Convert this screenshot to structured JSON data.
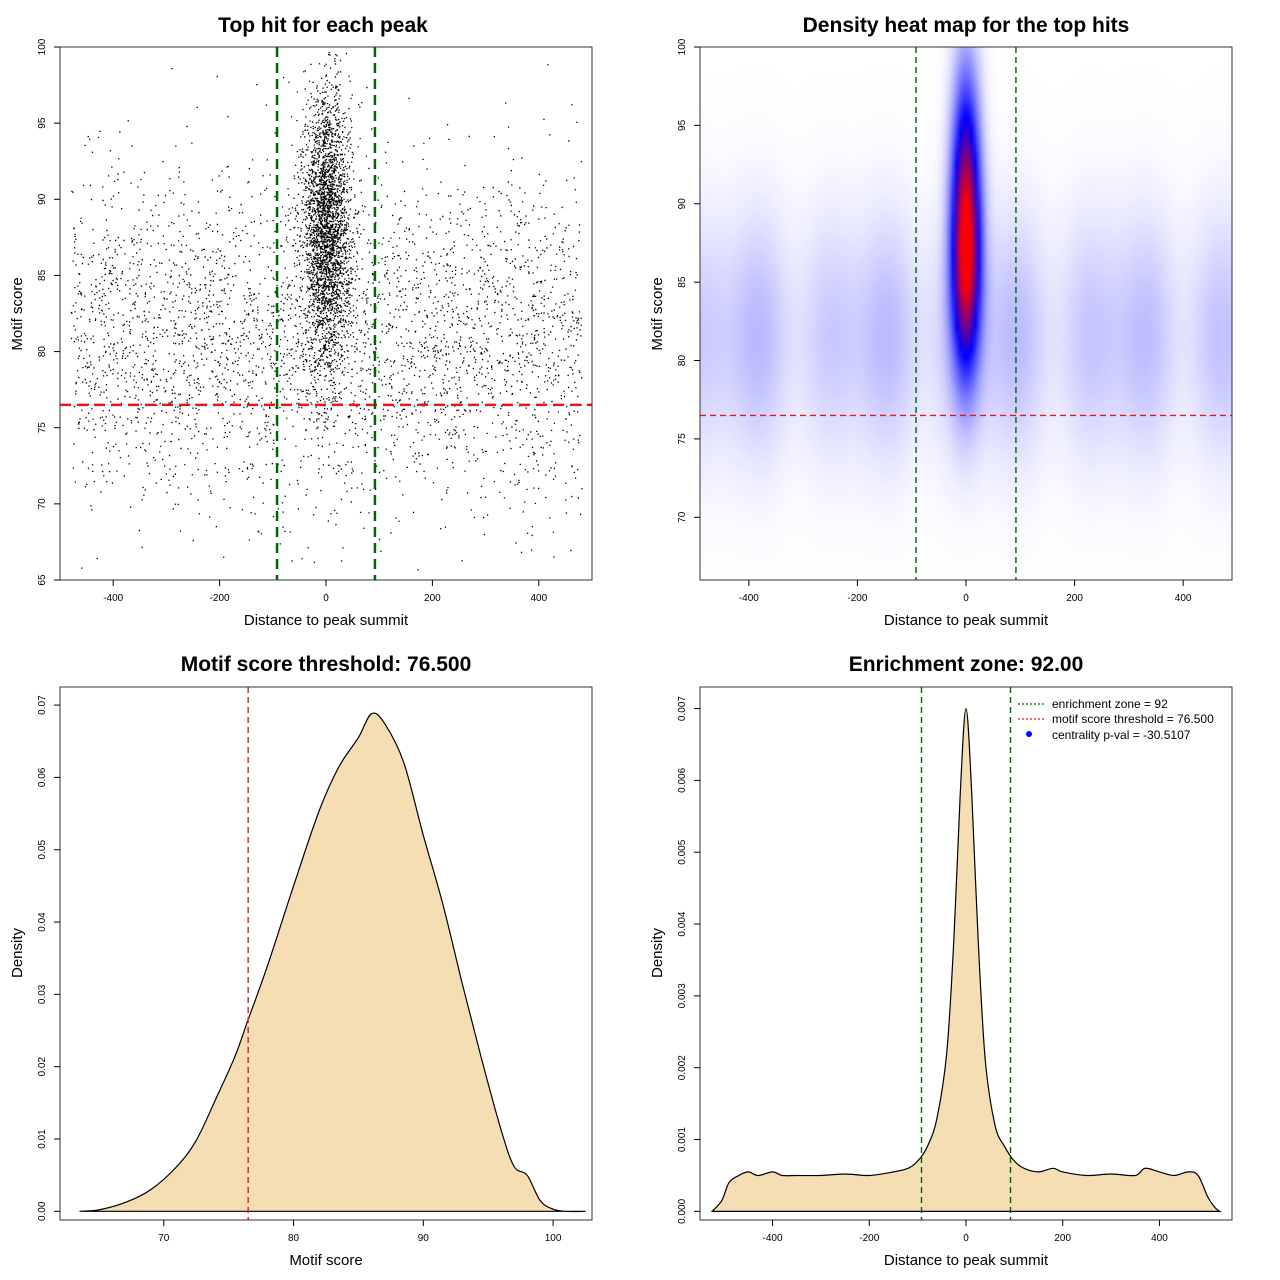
{
  "colors": {
    "threshold_line": "#e31a1c",
    "zone_line": "#006400",
    "density_fill": "#f5deb3",
    "points": "#000000",
    "heat_low": "#ffffff",
    "heat_mid": "#0000ff",
    "heat_high": "#ff0000",
    "legend_point": "#0000ff"
  },
  "chart_data": [
    {
      "type": "scatter",
      "title": "Top hit for each peak",
      "xlabel": "Distance to peak summit",
      "ylabel": "Motif score",
      "xlim": [
        -500,
        500
      ],
      "ylim": [
        65,
        100
      ],
      "xticks": [
        -400,
        -200,
        0,
        200,
        400
      ],
      "yticks": [
        65,
        70,
        75,
        80,
        85,
        90,
        95,
        100
      ],
      "background": {
        "n": 3400,
        "x_range": [
          -480,
          480
        ],
        "y_mean": 81,
        "y_sd": 5.5
      },
      "central_cluster": {
        "n": 3000,
        "x_mean": 0,
        "x_sd": 22,
        "y_mean": 88,
        "y_sd": 4.5
      },
      "horizontal_line": 76.5,
      "vertical_lines": [
        -92,
        92
      ],
      "grid": false
    },
    {
      "type": "heatmap",
      "title": "Density heat map for the top hits",
      "xlabel": "Distance to peak summit",
      "ylabel": "Motif score",
      "xlim": [
        -490,
        490
      ],
      "ylim": [
        66,
        100
      ],
      "xticks": [
        -400,
        -200,
        0,
        200,
        400
      ],
      "yticks": [
        70,
        75,
        80,
        85,
        90,
        95,
        100
      ],
      "peak": {
        "x": 0,
        "y": 87.5,
        "x_sd": 18,
        "y_sd": 5.5
      },
      "background_band_y": 81.5,
      "horizontal_line": 76.5,
      "vertical_lines": [
        -92,
        92
      ],
      "grid": false
    },
    {
      "type": "area",
      "title": "Motif score threshold: 76.500",
      "xlabel": "Motif score",
      "ylabel": "Density",
      "xlim": [
        62,
        103
      ],
      "ylim": [
        -0.0012,
        0.0725
      ],
      "xticks": [
        70,
        80,
        90,
        100
      ],
      "yticks": [
        0.0,
        0.01,
        0.02,
        0.03,
        0.04,
        0.05,
        0.06,
        0.07
      ],
      "ytick_labels": [
        "0.00",
        "0.01",
        "0.02",
        "0.03",
        "0.04",
        "0.05",
        "0.06",
        "0.07"
      ],
      "x": [
        63.5,
        65,
        67,
        69,
        71,
        72.5,
        74,
        75.5,
        76.5,
        78,
        80,
        82,
        83.5,
        85,
        86,
        87,
        88.5,
        90,
        91.5,
        93,
        94.5,
        96,
        97,
        98,
        99,
        100,
        101,
        102.5
      ],
      "y": [
        0.0,
        0.0002,
        0.0012,
        0.003,
        0.0062,
        0.0098,
        0.0155,
        0.0215,
        0.0265,
        0.034,
        0.045,
        0.0555,
        0.0615,
        0.0655,
        0.0688,
        0.0675,
        0.062,
        0.052,
        0.0425,
        0.0315,
        0.021,
        0.0112,
        0.0062,
        0.005,
        0.0015,
        0.0003,
        0.0,
        0.0
      ],
      "vertical_lines": [
        76.5
      ],
      "grid": false
    },
    {
      "type": "area",
      "title": "Enrichment zone: 92.00",
      "xlabel": "Distance to peak summit",
      "ylabel": "Density",
      "xlim": [
        -550,
        550
      ],
      "ylim": [
        -0.00012,
        0.0073
      ],
      "xticks": [
        -400,
        -200,
        0,
        200,
        400
      ],
      "yticks": [
        0.0,
        0.001,
        0.002,
        0.003,
        0.004,
        0.005,
        0.006,
        0.007
      ],
      "ytick_labels": [
        "0.000",
        "0.001",
        "0.002",
        "0.003",
        "0.004",
        "0.005",
        "0.006",
        "0.007"
      ],
      "x": [
        -525,
        -505,
        -490,
        -470,
        -450,
        -430,
        -400,
        -380,
        -350,
        -300,
        -250,
        -200,
        -150,
        -120,
        -100,
        -80,
        -60,
        -40,
        -25,
        -12,
        0,
        12,
        25,
        40,
        60,
        80,
        100,
        120,
        150,
        180,
        200,
        250,
        300,
        350,
        370,
        400,
        430,
        460,
        480,
        500,
        515,
        525
      ],
      "y": [
        0.0,
        0.00015,
        0.0004,
        0.0005,
        0.00055,
        0.0005,
        0.00055,
        0.0005,
        0.0005,
        0.0005,
        0.00052,
        0.0005,
        0.00055,
        0.0006,
        0.0007,
        0.0009,
        0.0013,
        0.0022,
        0.0038,
        0.0058,
        0.007,
        0.0058,
        0.0038,
        0.0021,
        0.0012,
        0.0009,
        0.0007,
        0.0006,
        0.00055,
        0.0006,
        0.00055,
        0.0005,
        0.00052,
        0.0005,
        0.0006,
        0.00055,
        0.0005,
        0.00055,
        0.0005,
        0.0002,
        5e-05,
        0.0
      ],
      "vertical_lines": [
        -92,
        92
      ],
      "legend": {
        "position": "top-right",
        "entries": [
          {
            "label": "enrichment zone = 92",
            "style": "dotted",
            "color": "#006400"
          },
          {
            "label": "motif score threshold = 76.500",
            "style": "dotted",
            "color": "#e31a1c"
          },
          {
            "label": "centrality p-val = -30.5107",
            "style": "point",
            "color": "#0000ff"
          }
        ]
      },
      "grid": false
    }
  ]
}
